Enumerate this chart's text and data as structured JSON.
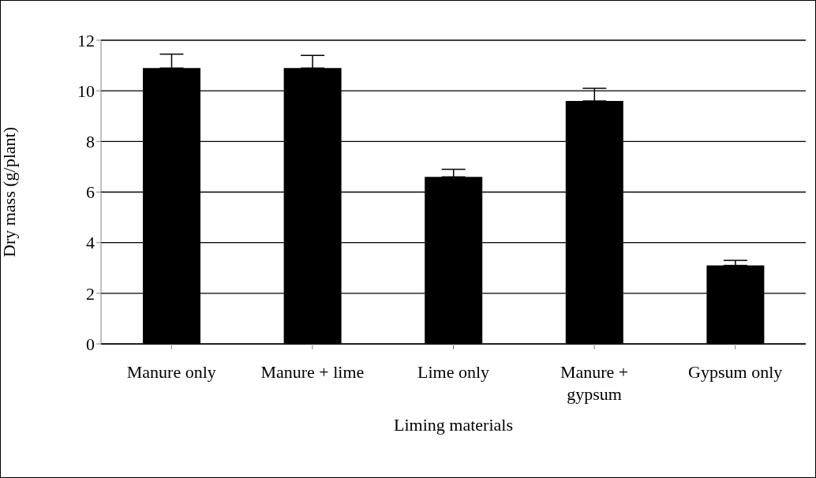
{
  "chart_data": {
    "type": "bar",
    "categories": [
      "Manure only",
      "Manure + lime",
      "Lime only",
      "Manure + gypsum",
      "Gypsum only"
    ],
    "values": [
      10.9,
      10.9,
      6.6,
      9.6,
      3.1
    ],
    "errors": [
      [
        10.9,
        11.45
      ],
      [
        10.9,
        11.4
      ],
      [
        6.6,
        6.9
      ],
      [
        9.6,
        10.1
      ],
      [
        3.1,
        3.3
      ]
    ],
    "color": "#000000",
    "xlabel": "Liming materials",
    "ylabel": "Dry mass (g/plant)",
    "ylim": [
      0,
      12
    ],
    "yticks": [
      0,
      2,
      4,
      6,
      8,
      10,
      12
    ],
    "grid": "y"
  }
}
